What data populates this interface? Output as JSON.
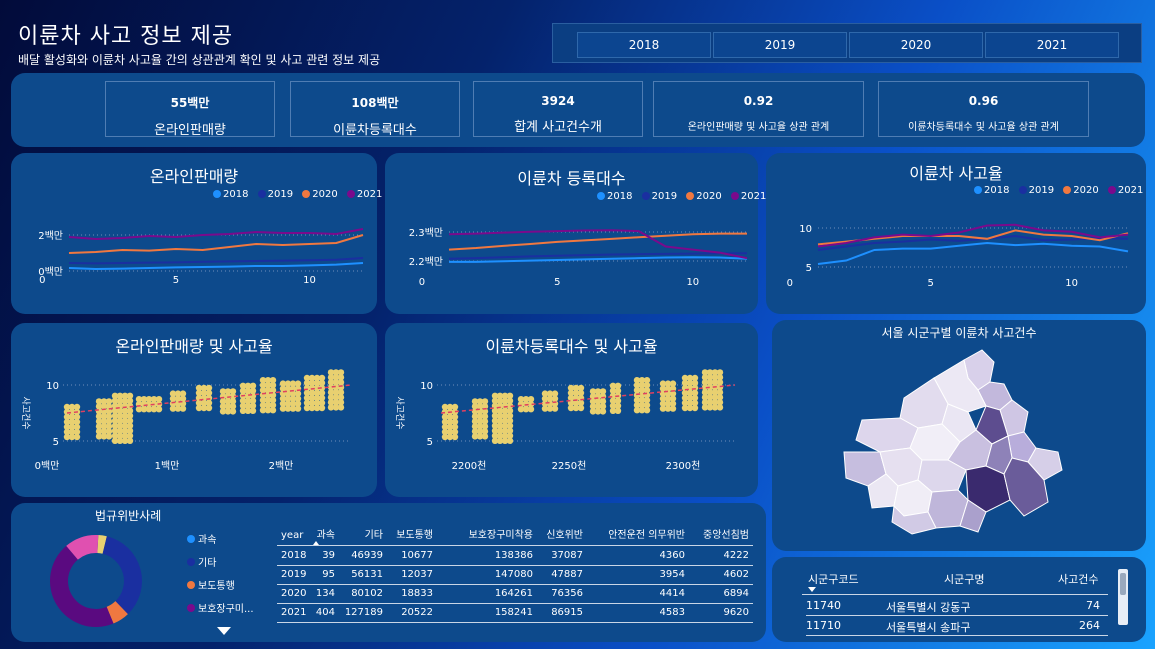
{
  "header": {
    "title": "이륜차 사고 정보 제공",
    "subtitle": "배달 활성화와 이륜차 사고율 간의 상관관계 확인 및 사고 관련 정보 제공"
  },
  "years": [
    "2018",
    "2019",
    "2020",
    "2021"
  ],
  "kpis": [
    {
      "value": "55백만",
      "label": "온라인판매량"
    },
    {
      "value": "108백만",
      "label": "이륜차등록대수"
    },
    {
      "value": "3924",
      "label": "합계 사고건수개"
    },
    {
      "value": "0.92",
      "label": "온라인판매량 및 사고율 상관 관계"
    },
    {
      "value": "0.96",
      "label": "이륜차등록대수 및 사고율 상관 관계"
    }
  ],
  "colors": {
    "2018": "#1e90ff",
    "2019": "#1a2fa0",
    "2020": "#f07840",
    "2021": "#7a0a8c",
    "scatter": "#e8d070",
    "trend": "#e04060"
  },
  "line_charts": [
    {
      "title": "온라인판매량",
      "yticks": [
        "2백만",
        "0백만"
      ],
      "xticks": [
        "0",
        "5",
        "10"
      ]
    },
    {
      "title": "이륜차 등록대수",
      "yticks": [
        "2.3백만",
        "2.2백만"
      ],
      "xticks": [
        "0",
        "5",
        "10"
      ]
    },
    {
      "title": "이륜차 사고율",
      "yticks": [
        "10",
        "5"
      ],
      "xticks": [
        "0",
        "5",
        "10"
      ]
    }
  ],
  "chart_data": [
    {
      "type": "line",
      "title": "온라인판매량",
      "x": [
        1,
        2,
        3,
        4,
        5,
        6,
        7,
        8,
        9,
        10,
        11,
        12
      ],
      "ylim": [
        0,
        2.4
      ],
      "series": [
        {
          "name": "2018",
          "values": [
            0.35,
            0.3,
            0.32,
            0.35,
            0.38,
            0.4,
            0.42,
            0.45,
            0.45,
            0.48,
            0.52,
            0.6
          ]
        },
        {
          "name": "2019",
          "values": [
            0.6,
            0.58,
            0.6,
            0.62,
            0.63,
            0.66,
            0.68,
            0.7,
            0.72,
            0.74,
            0.76,
            0.85
          ]
        },
        {
          "name": "2020",
          "values": [
            1.1,
            1.15,
            1.25,
            1.22,
            1.3,
            1.25,
            1.4,
            1.55,
            1.5,
            1.55,
            1.6,
            2.0
          ]
        },
        {
          "name": "2021",
          "values": [
            1.9,
            1.8,
            1.85,
            1.95,
            1.9,
            2.0,
            2.05,
            2.15,
            2.1,
            2.1,
            2.05,
            2.3
          ]
        }
      ]
    },
    {
      "type": "line",
      "title": "이륜차 등록대수",
      "x": [
        1,
        2,
        3,
        4,
        5,
        6,
        7,
        8,
        9,
        10,
        11,
        12
      ],
      "ylim": [
        2.18,
        2.32
      ],
      "series": [
        {
          "name": "2018",
          "values": [
            2.2,
            2.2,
            2.202,
            2.204,
            2.206,
            2.208,
            2.21,
            2.212,
            2.214,
            2.215,
            2.214,
            2.21
          ]
        },
        {
          "name": "2019",
          "values": [
            2.21,
            2.212,
            2.215,
            2.218,
            2.22,
            2.222,
            2.224,
            2.225,
            2.226,
            2.227,
            2.228,
            2.228
          ]
        },
        {
          "name": "2020",
          "values": [
            2.24,
            2.245,
            2.252,
            2.258,
            2.265,
            2.27,
            2.275,
            2.28,
            2.285,
            2.29,
            2.292,
            2.292
          ]
        },
        {
          "name": "2021",
          "values": [
            2.29,
            2.292,
            2.295,
            2.298,
            2.3,
            2.302,
            2.303,
            2.3,
            2.25,
            2.24,
            2.23,
            2.212
          ]
        }
      ]
    },
    {
      "type": "line",
      "title": "이륜차 사고율",
      "x": [
        1,
        2,
        3,
        4,
        5,
        6,
        7,
        8,
        9,
        10,
        11,
        12
      ],
      "ylim": [
        4,
        12
      ],
      "series": [
        {
          "name": "2018",
          "values": [
            5,
            5.5,
            7,
            7.2,
            7.2,
            7.6,
            8,
            7.7,
            7.9,
            7.6,
            7.5,
            6.8
          ]
        },
        {
          "name": "2019",
          "values": [
            7,
            7.5,
            8,
            8.2,
            8.5,
            8.3,
            8.6,
            9,
            8.4,
            8.5,
            8.7,
            8.6
          ]
        },
        {
          "name": "2020",
          "values": [
            7.8,
            8.2,
            8.6,
            9,
            9,
            9,
            8.6,
            9.8,
            9.2,
            9,
            8.4,
            9.4
          ]
        },
        {
          "name": "2021",
          "values": [
            7.5,
            8,
            8.8,
            9.2,
            9,
            9.5,
            10.5,
            10.6,
            9.8,
            9.6,
            8.8,
            9.2
          ]
        }
      ]
    }
  ],
  "scatter_charts": [
    {
      "title": "온라인판매량 및 사고율",
      "ylabel": "사고건수",
      "yticks": [
        "10",
        "5"
      ],
      "xticks": [
        "0백만",
        "1백만",
        "2백만"
      ]
    },
    {
      "title": "이륜차등록대수 및 사고율",
      "ylabel": "사고건수",
      "yticks": [
        "10",
        "5"
      ],
      "xticks": [
        "2200천",
        "2250천",
        "2300천"
      ]
    }
  ],
  "map": {
    "title": "서울 시군구별 이륜차 사고건수"
  },
  "donut": {
    "title": "법규위반사례",
    "legend": [
      "과속",
      "기타",
      "보도통행",
      "보호장구미..."
    ],
    "values": [
      3,
      34,
      6,
      45,
      12
    ],
    "colors": [
      "#e8d070",
      "#1a2fa0",
      "#f07840",
      "#5a0a80",
      "#e050b0"
    ]
  },
  "violation_table": {
    "columns": [
      "year",
      "과속",
      "기타",
      "보도통행",
      "보호장구미착용",
      "신호위반",
      "안전운전 의무위반",
      "중앙선침범"
    ],
    "rows": [
      [
        "2018",
        "39",
        "46939",
        "10677",
        "138386",
        "37087",
        "4360",
        "4222"
      ],
      [
        "2019",
        "95",
        "56131",
        "12037",
        "147080",
        "47887",
        "3954",
        "4602"
      ],
      [
        "2020",
        "134",
        "80102",
        "18833",
        "164261",
        "76356",
        "4414",
        "6894"
      ],
      [
        "2021",
        "404",
        "127189",
        "20522",
        "158241",
        "86915",
        "4583",
        "9620"
      ]
    ]
  },
  "district_table": {
    "columns": [
      "시군구코드",
      "시군구명",
      "사고건수"
    ],
    "rows": [
      [
        "11740",
        "서울특별시 강동구",
        "74"
      ],
      [
        "11710",
        "서울특별시 송파구",
        "264"
      ]
    ]
  }
}
